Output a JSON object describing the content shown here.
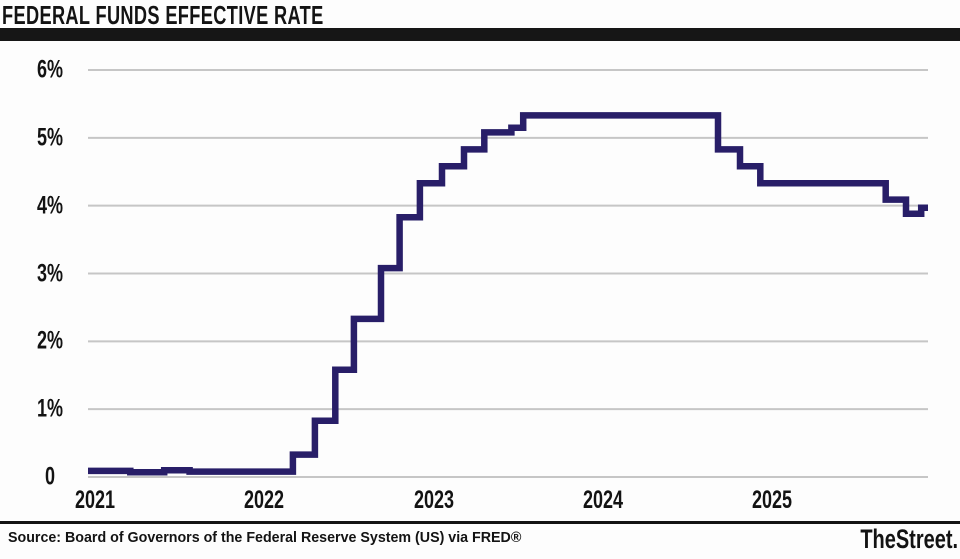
{
  "header": {
    "title": "FEDERAL FUNDS EFFECTIVE RATE"
  },
  "footer": {
    "source": "Source: Board of Governors of the Federal Reserve System (US) via FRED®",
    "logo": "TheStreet."
  },
  "colors": {
    "line": "#281e68",
    "grid": "#c6c6c6",
    "text": "#131313",
    "rule": "#161616",
    "background": "#fdfdfd"
  },
  "chart_data": {
    "type": "line",
    "step": "after",
    "title": "FEDERAL FUNDS EFFECTIVE RATE",
    "xlabel": "",
    "ylabel": "",
    "grid": true,
    "legend": false,
    "xlim": [
      2021.0,
      2025.96
    ],
    "ylim": [
      0,
      6
    ],
    "x_ticks": [
      {
        "value": 2021,
        "label": "2021"
      },
      {
        "value": 2022,
        "label": "2022"
      },
      {
        "value": 2023,
        "label": "2023"
      },
      {
        "value": 2024,
        "label": "2024"
      },
      {
        "value": 2025,
        "label": "2025"
      }
    ],
    "y_ticks": [
      {
        "value": 0,
        "label": "0"
      },
      {
        "value": 1,
        "label": "1%"
      },
      {
        "value": 2,
        "label": "2%"
      },
      {
        "value": 3,
        "label": "3%"
      },
      {
        "value": 4,
        "label": "4%"
      },
      {
        "value": 5,
        "label": "5%"
      },
      {
        "value": 6,
        "label": "6%"
      }
    ],
    "series": [
      {
        "name": "Federal Funds Effective Rate (%)",
        "points": [
          [
            2021.0,
            0.09
          ],
          [
            2021.25,
            0.07
          ],
          [
            2021.45,
            0.1
          ],
          [
            2021.6,
            0.08
          ],
          [
            2022.21,
            0.33
          ],
          [
            2022.34,
            0.83
          ],
          [
            2022.46,
            1.58
          ],
          [
            2022.57,
            2.33
          ],
          [
            2022.73,
            3.08
          ],
          [
            2022.84,
            3.83
          ],
          [
            2022.96,
            4.33
          ],
          [
            2023.09,
            4.58
          ],
          [
            2023.22,
            4.83
          ],
          [
            2023.34,
            5.08
          ],
          [
            2023.5,
            5.15
          ],
          [
            2023.57,
            5.33
          ],
          [
            2024.72,
            4.83
          ],
          [
            2024.85,
            4.58
          ],
          [
            2024.97,
            4.33
          ],
          [
            2025.71,
            4.09
          ],
          [
            2025.83,
            3.88
          ],
          [
            2025.92,
            3.97
          ]
        ]
      }
    ]
  }
}
